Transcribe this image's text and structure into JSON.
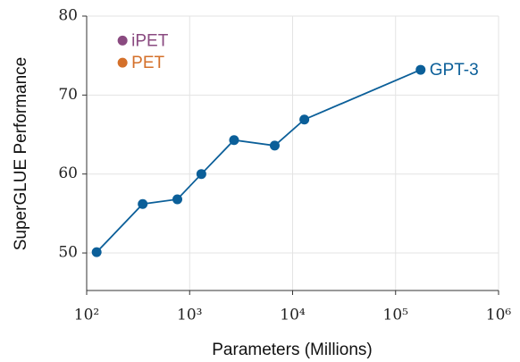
{
  "chart_data": {
    "type": "line",
    "xlabel": "Parameters (Millions)",
    "ylabel": "SuperGLUE Performance",
    "xscale": "log",
    "grid": true,
    "xlim": [
      100,
      1000000
    ],
    "ylim": [
      45.25,
      80
    ],
    "xticks": [
      {
        "value": 100,
        "label": "10²"
      },
      {
        "value": 1000,
        "label": "10³"
      },
      {
        "value": 10000,
        "label": "10⁴"
      },
      {
        "value": 100000,
        "label": "10⁵"
      },
      {
        "value": 1000000,
        "label": "10⁶"
      }
    ],
    "yticks": [
      50,
      60,
      70,
      80
    ],
    "series": [
      {
        "name": "GPT-3",
        "color": "#0b5f99",
        "x": [
          125,
          350,
          760,
          1300,
          2700,
          6700,
          13000,
          175000
        ],
        "values": [
          50.1,
          56.2,
          56.8,
          60.0,
          64.3,
          63.6,
          66.9,
          73.2
        ]
      },
      {
        "name": "iPET",
        "color": "#8a4a80",
        "x": [
          223
        ],
        "values": [
          76.9
        ]
      },
      {
        "name": "PET",
        "color": "#d4702a",
        "x": [
          223
        ],
        "values": [
          74.1
        ]
      }
    ]
  }
}
